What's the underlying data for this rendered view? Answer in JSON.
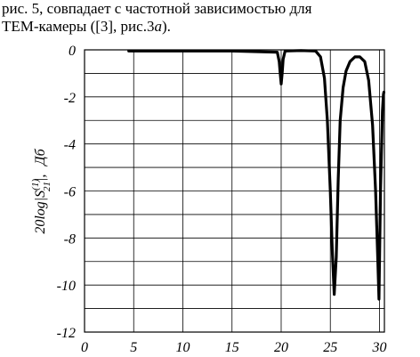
{
  "text": {
    "line1": "рис. 5, совпадает с частотной зависимостью для",
    "line2_prefix": "ТЕМ-камеры ([3], рис.3",
    "line2_italic": "a",
    "line2_suffix": ")."
  },
  "chart_data": {
    "type": "line",
    "title": "",
    "xlabel": "",
    "ylabel_main": "20log|S",
    "ylabel_sup": "(1)",
    "ylabel_sub": "21",
    "ylabel_close": "|,",
    "ylabel_unit": "Дб",
    "xlim": [
      0,
      30.5
    ],
    "ylim": [
      -12,
      0
    ],
    "x_ticks": [
      0,
      5,
      10,
      15,
      20,
      25,
      30
    ],
    "y_ticks": [
      0,
      -2,
      -4,
      -6,
      -8,
      -10,
      -12
    ],
    "y_tick_labels": [
      "0",
      "-2",
      "-4",
      "-6",
      "-8",
      "-10",
      "-12"
    ],
    "grid": true,
    "series": [
      {
        "x": [
          4.5,
          10,
          15,
          19.6,
          19.8,
          19.9,
          20.0,
          20.1,
          20.2,
          20.4,
          22,
          23.5,
          24.0,
          24.4,
          24.7,
          25.0,
          25.2,
          25.4,
          25.6,
          25.8,
          26.0,
          26.3,
          26.6,
          27.0,
          27.5,
          28.0,
          28.5,
          28.9,
          29.3,
          29.6,
          29.8,
          29.95,
          30.1,
          30.3,
          30.4,
          30.45
        ],
        "y": [
          -0.05,
          -0.05,
          -0.05,
          -0.1,
          -0.5,
          -1.0,
          -1.45,
          -1.0,
          -0.4,
          -0.05,
          -0.03,
          -0.05,
          -0.3,
          -1.2,
          -3.0,
          -6.0,
          -8.5,
          -10.4,
          -8.8,
          -5.5,
          -3.0,
          -1.6,
          -0.9,
          -0.5,
          -0.3,
          -0.3,
          -0.5,
          -1.3,
          -3.2,
          -6.0,
          -8.6,
          -10.6,
          -6.0,
          -2.6,
          -1.9,
          -1.8
        ]
      }
    ]
  }
}
